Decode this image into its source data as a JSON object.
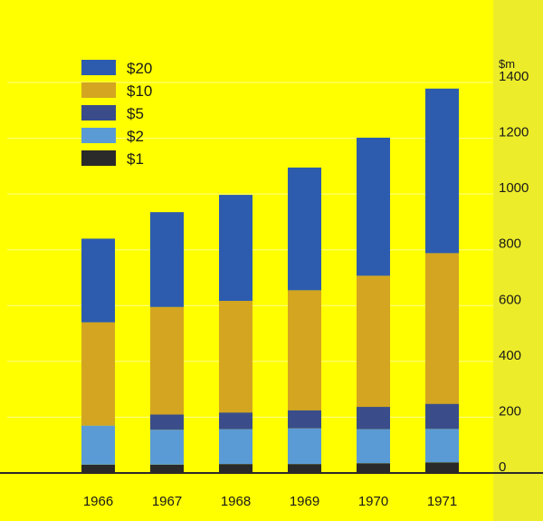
{
  "chart_data": {
    "type": "bar",
    "stacked": true,
    "categories": [
      "1966",
      "1967",
      "1968",
      "1969",
      "1970",
      "1971"
    ],
    "ylabel": "$m",
    "ylim": [
      0,
      1400
    ],
    "yticks": [
      "0",
      "200",
      "400",
      "600",
      "800",
      "1000",
      "1200",
      "1400"
    ],
    "grid": true,
    "legend_position": "top-left",
    "series": [
      {
        "name": "$1",
        "color": "#2a2a2a",
        "values": [
          30,
          30,
          32,
          32,
          35,
          38
        ]
      },
      {
        "name": "$2",
        "color": "#5b9bd5",
        "values": [
          140,
          125,
          125,
          128,
          122,
          120
        ]
      },
      {
        "name": "$5",
        "color": "#3a4d8a",
        "values": [
          0,
          55,
          60,
          65,
          80,
          90
        ]
      },
      {
        "name": "$10",
        "color": "#d4a520",
        "values": [
          370,
          385,
          400,
          430,
          470,
          540
        ]
      },
      {
        "name": "$20",
        "color": "#2d5cae",
        "values": [
          300,
          340,
          380,
          440,
          495,
          590
        ]
      }
    ]
  }
}
